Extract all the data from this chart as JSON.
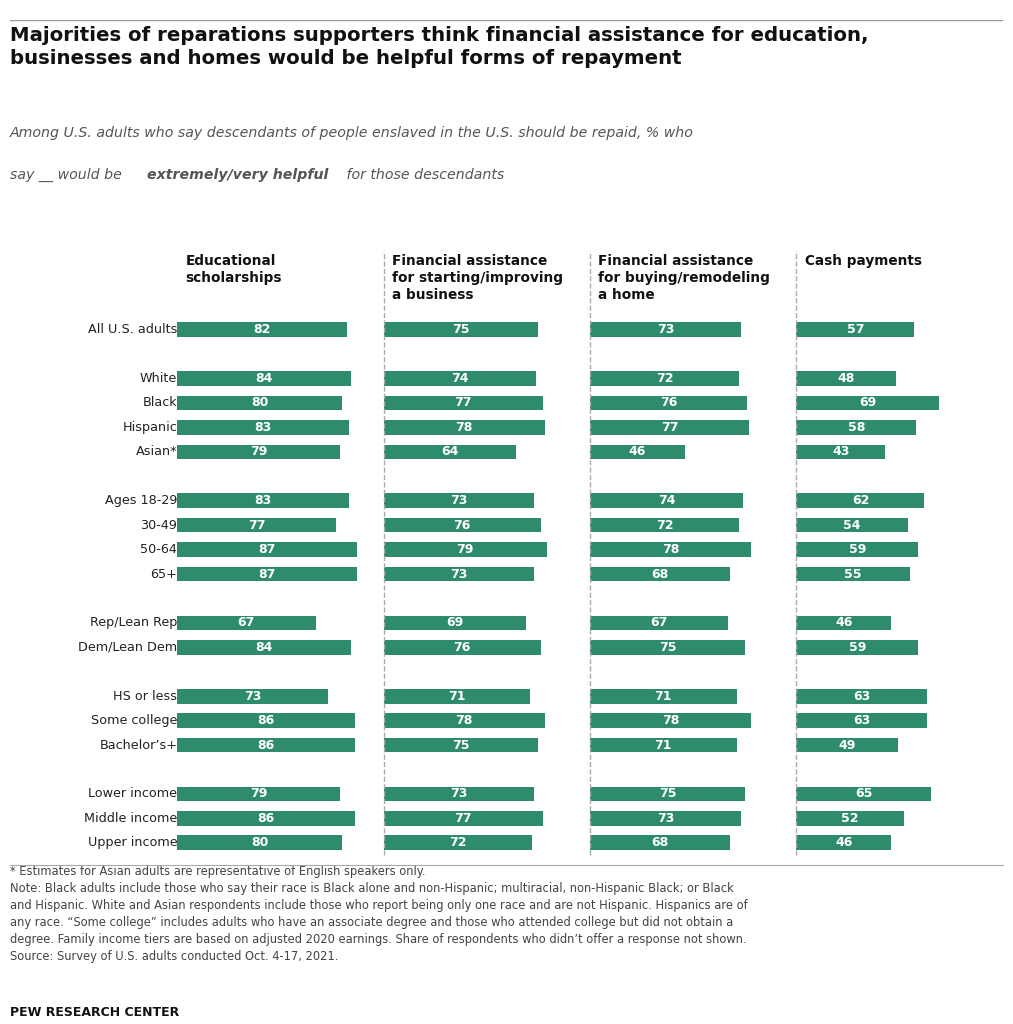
{
  "title": "Majorities of reparations supporters think financial assistance for education,\nbusinesses and homes would be helpful forms of repayment",
  "subtitle_line1": "Among U.S. adults who say descendants of people enslaved in the U.S. should be repaid, % who",
  "subtitle_line2_plain": "say __ would be ",
  "subtitle_line2_bold": "extremely/very helpful",
  "subtitle_line2_end": " for those descendants",
  "col_headers": [
    "Educational\nscholarships",
    "Financial assistance\nfor starting/improving\na business",
    "Financial assistance\nfor buying/remodeling\na home",
    "Cash payments"
  ],
  "categories": [
    "All U.S. adults",
    "",
    "White",
    "Black",
    "Hispanic",
    "Asian*",
    "",
    "Ages 18-29",
    "30-49",
    "50-64",
    "65+",
    "",
    "Rep/Lean Rep",
    "Dem/Lean Dem",
    "",
    "HS or less",
    "Some college",
    "Bachelor’s+",
    "",
    "Lower income",
    "Middle income",
    "Upper income"
  ],
  "col1": [
    82,
    null,
    84,
    80,
    83,
    79,
    null,
    83,
    77,
    87,
    87,
    null,
    67,
    84,
    null,
    73,
    86,
    86,
    null,
    79,
    86,
    80
  ],
  "col2": [
    75,
    null,
    74,
    77,
    78,
    64,
    null,
    73,
    76,
    79,
    73,
    null,
    69,
    76,
    null,
    71,
    78,
    75,
    null,
    73,
    77,
    72
  ],
  "col3": [
    73,
    null,
    72,
    76,
    77,
    46,
    null,
    74,
    72,
    78,
    68,
    null,
    67,
    75,
    null,
    71,
    78,
    71,
    null,
    75,
    73,
    68
  ],
  "col4": [
    57,
    null,
    48,
    69,
    58,
    43,
    null,
    62,
    54,
    59,
    55,
    null,
    46,
    59,
    null,
    63,
    63,
    49,
    null,
    65,
    52,
    46
  ],
  "bar_color": "#2e8b6e",
  "bar_height": 0.6,
  "footnote1": "* Estimates for Asian adults are representative of English speakers only.",
  "footnote2": "Note: Black adults include those who say their race is Black alone and non-Hispanic; multiracial, non-Hispanic Black; or Black\nand Hispanic. White and Asian respondents include those who report being only one race and are not Hispanic. Hispanics are of\nany race. “Some college” includes adults who have an associate degree and those who attended college but did not obtain a\ndegree. Family income tiers are based on adjusted 2020 earnings. Share of respondents who didn’t offer a response not shown.\nSource: Survey of U.S. adults conducted Oct. 4-17, 2021.",
  "source": "PEW RESEARCH CENTER",
  "bg_color": "#ffffff"
}
